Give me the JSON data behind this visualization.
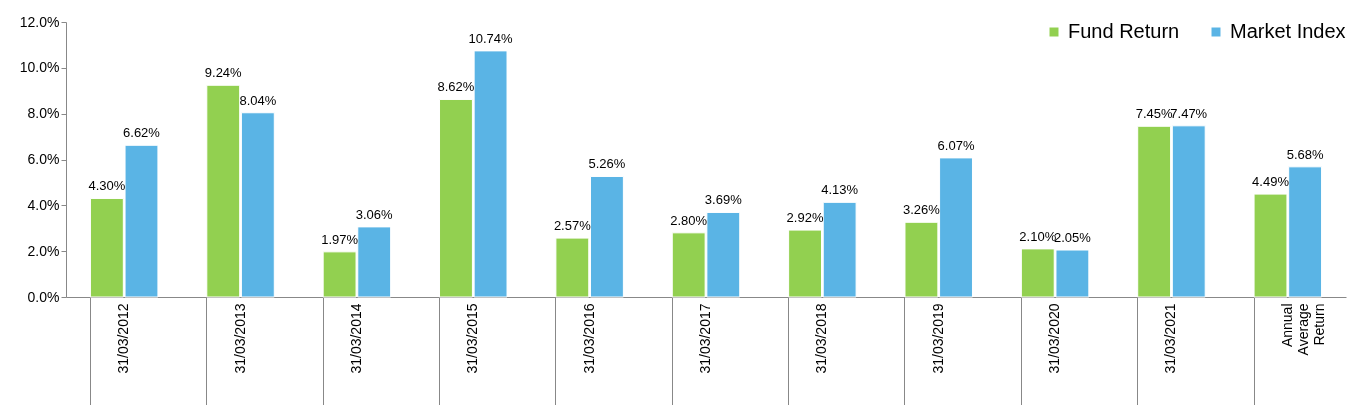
{
  "chart_data": {
    "type": "bar",
    "categories": [
      "31/03/2012",
      "31/03/2013",
      "31/03/2014",
      "31/03/2015",
      "31/03/2016",
      "31/03/2017",
      "31/03/2018",
      "31/03/2019",
      "31/03/2020",
      "31/03/2021",
      "Annual Average Return"
    ],
    "series": [
      {
        "name": "Fund Return",
        "color": "#92d050",
        "values": [
          4.3,
          9.24,
          1.97,
          8.62,
          2.57,
          2.8,
          2.92,
          3.26,
          2.1,
          7.45,
          4.49
        ],
        "value_labels": [
          "4.30%",
          "9.24%",
          "1.97%",
          "8.62%",
          "2.57%",
          "2.80%",
          "2.92%",
          "3.26%",
          "2.10%",
          "7.45%",
          "4.49%"
        ]
      },
      {
        "name": "Market Index",
        "color": "#5ab4e5",
        "values": [
          6.62,
          8.04,
          3.06,
          10.74,
          5.26,
          3.69,
          4.13,
          6.07,
          2.05,
          7.47,
          5.68
        ],
        "value_labels": [
          "6.62%",
          "8.04%",
          "3.06%",
          "10.74%",
          "5.26%",
          "3.69%",
          "4.13%",
          "6.07%",
          "2.05%",
          "7.47%",
          "5.68%"
        ]
      }
    ],
    "ylim": [
      0,
      12
    ],
    "yticks": [
      {
        "value": 0,
        "label": "0.0%"
      },
      {
        "value": 2,
        "label": "2.0%"
      },
      {
        "value": 4,
        "label": "4.0%"
      },
      {
        "value": 6,
        "label": "6.0%"
      },
      {
        "value": 8,
        "label": "8.0%"
      },
      {
        "value": 10,
        "label": "10.0%"
      },
      {
        "value": 12,
        "label": "12.0%"
      }
    ],
    "legend": "top right"
  }
}
